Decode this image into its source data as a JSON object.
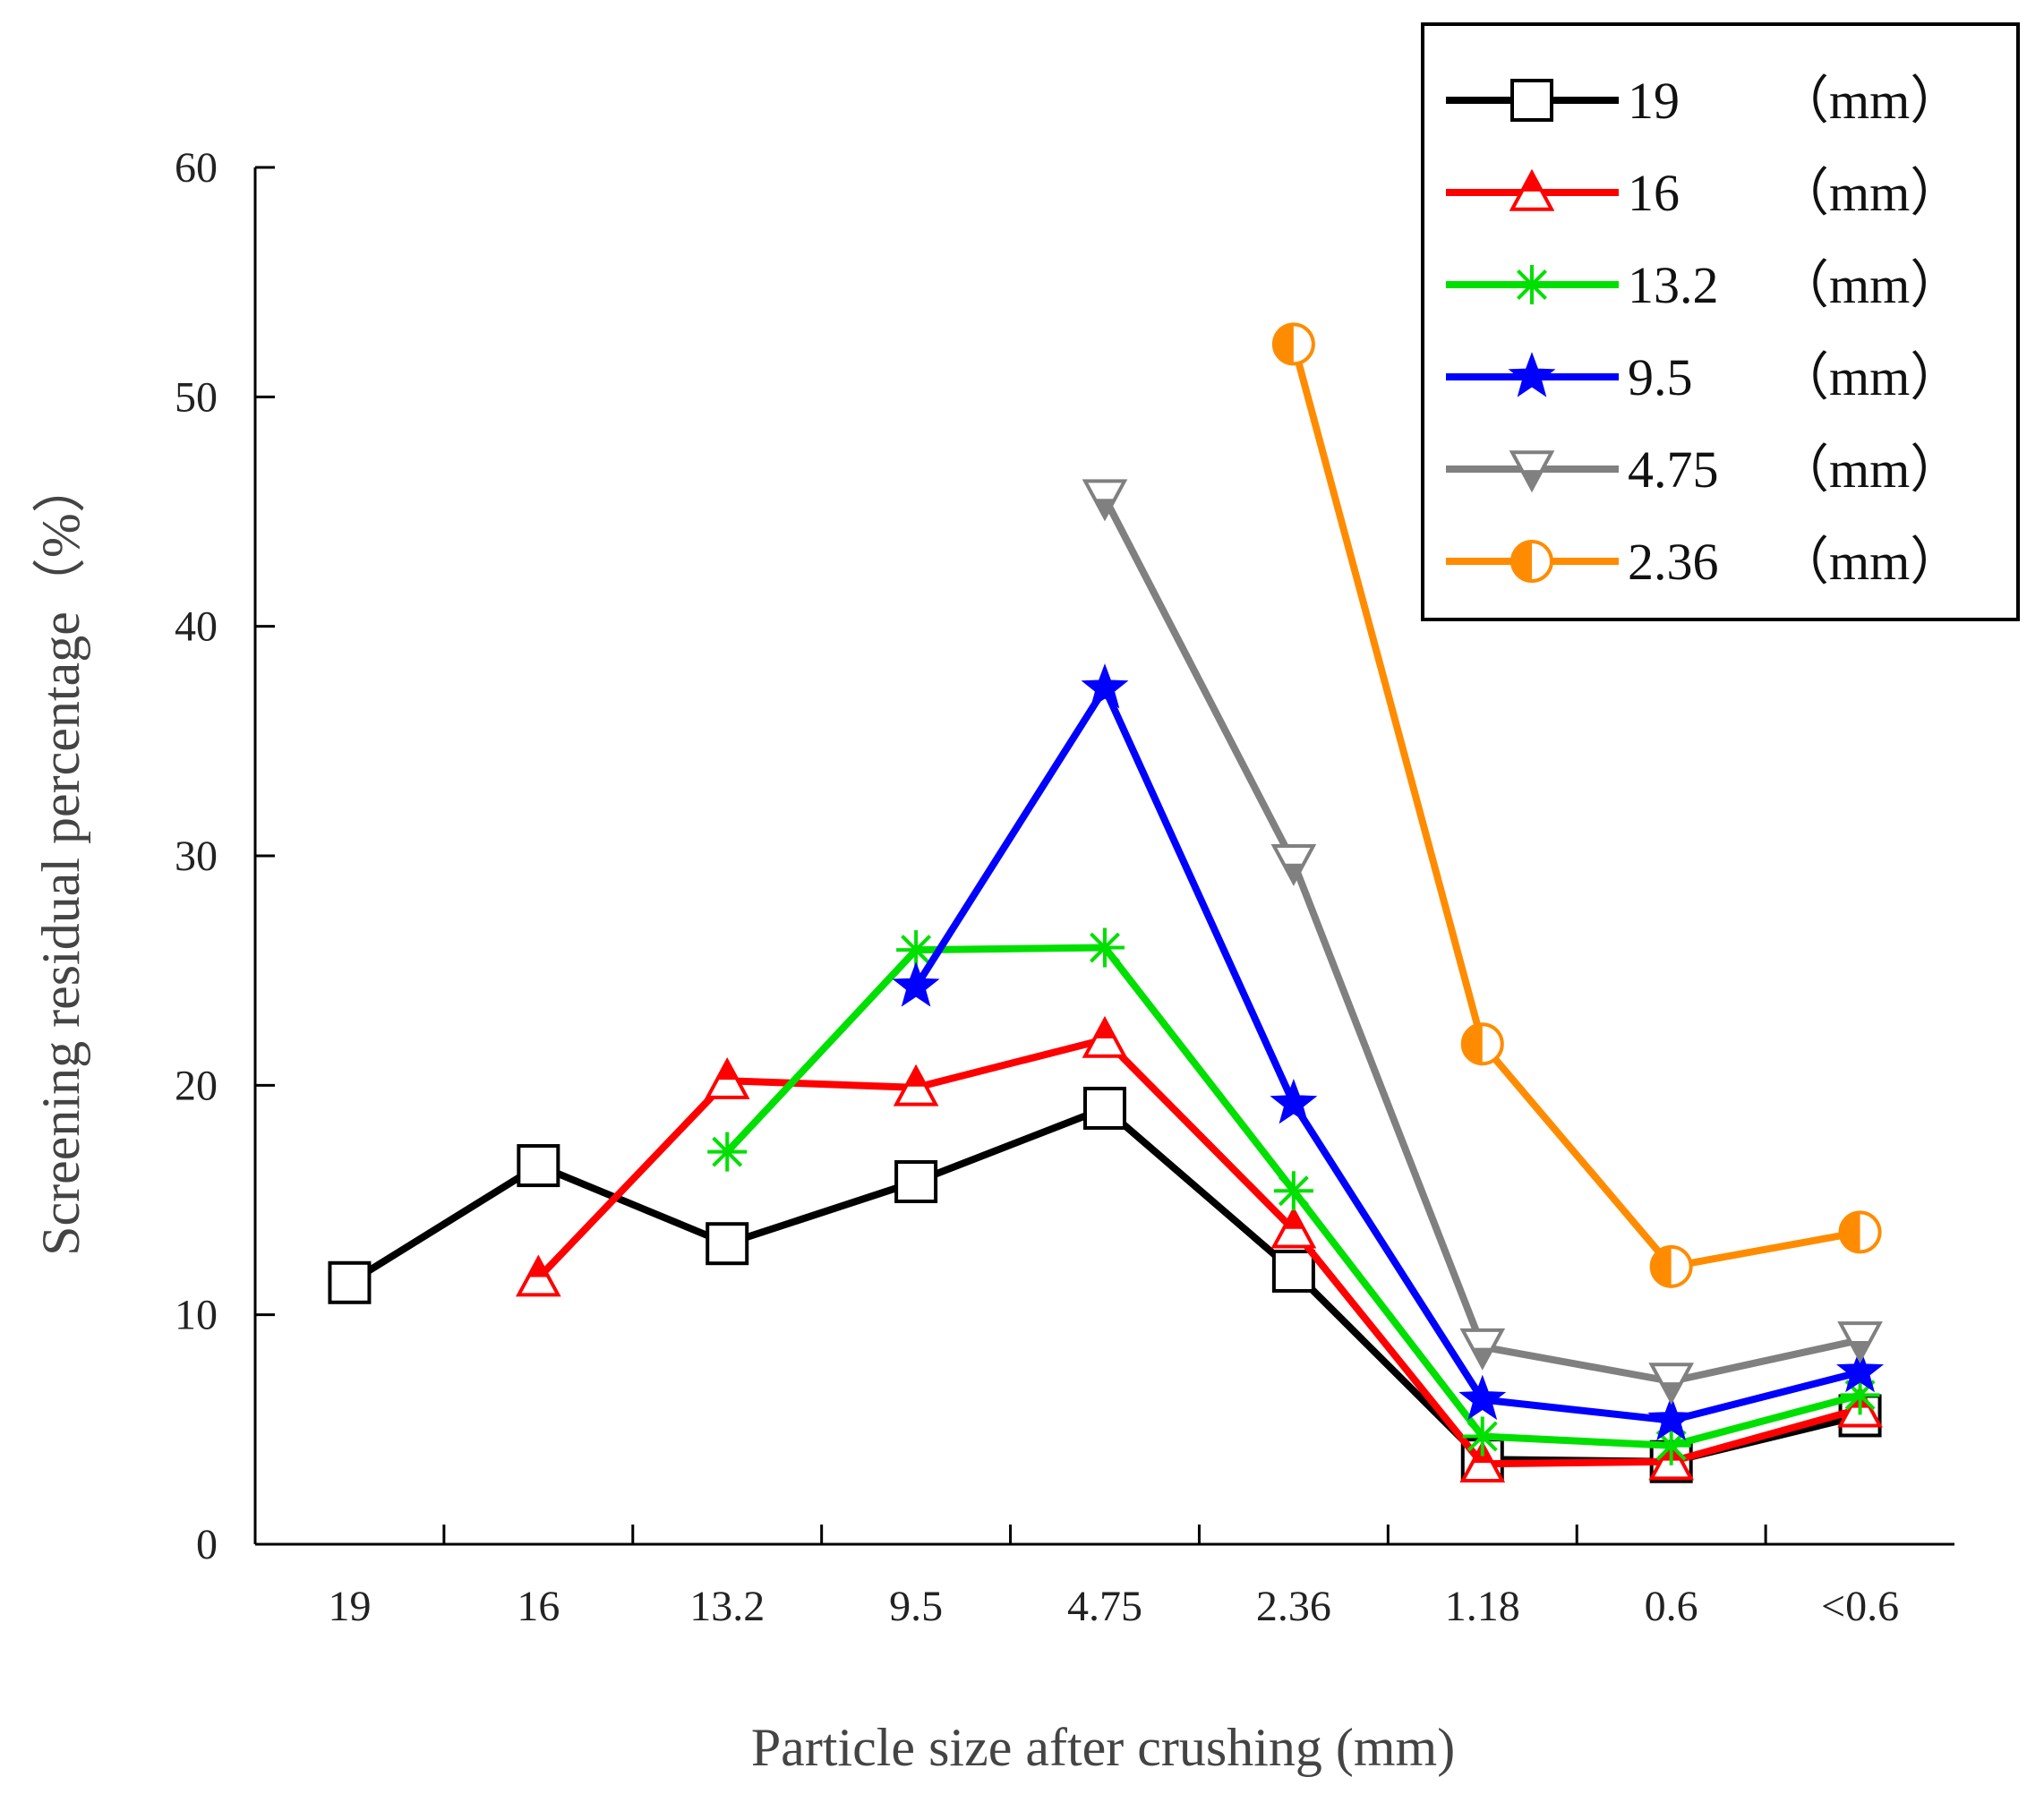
{
  "chart_data": {
    "type": "line",
    "title": "",
    "xlabel": "Particle size after crushing (mm)",
    "ylabel": "Screening residual percentage（%）",
    "categories": [
      "19",
      "16",
      "13.2",
      "9.5",
      "4.75",
      "2.36",
      "1.18",
      "0.6",
      "<0.6"
    ],
    "ylim": [
      0,
      60
    ],
    "yticks": [
      0,
      10,
      20,
      30,
      40,
      50,
      60
    ],
    "grid": false,
    "legend_position": "top-right",
    "unit_label": "（mm）",
    "series": [
      {
        "name": "19",
        "marker": "square",
        "color": "#000000",
        "values": [
          11.4,
          16.5,
          13.1,
          15.8,
          19.0,
          11.9,
          3.7,
          3.6,
          5.6
        ]
      },
      {
        "name": "16",
        "marker": "triangle",
        "color": "#ff0000",
        "values": [
          null,
          11.6,
          20.2,
          19.9,
          22.0,
          13.7,
          3.5,
          3.6,
          5.9
        ]
      },
      {
        "name": "13.2",
        "marker": "asterisk",
        "color": "#00e000",
        "values": [
          null,
          null,
          17.1,
          25.9,
          26.0,
          15.4,
          4.7,
          4.3,
          6.5
        ]
      },
      {
        "name": "9.5",
        "marker": "star",
        "color": "#0000ff",
        "values": [
          null,
          null,
          null,
          24.3,
          37.3,
          19.2,
          6.3,
          5.4,
          7.5
        ]
      },
      {
        "name": "4.75",
        "marker": "triangle-down",
        "color": "#808080",
        "values": [
          null,
          null,
          null,
          null,
          45.6,
          29.7,
          8.6,
          7.1,
          8.9
        ]
      },
      {
        "name": "2.36",
        "marker": "half-circle",
        "color": "#ff8c00",
        "values": [
          null,
          null,
          null,
          null,
          null,
          52.3,
          21.8,
          12.1,
          13.6
        ]
      }
    ]
  }
}
